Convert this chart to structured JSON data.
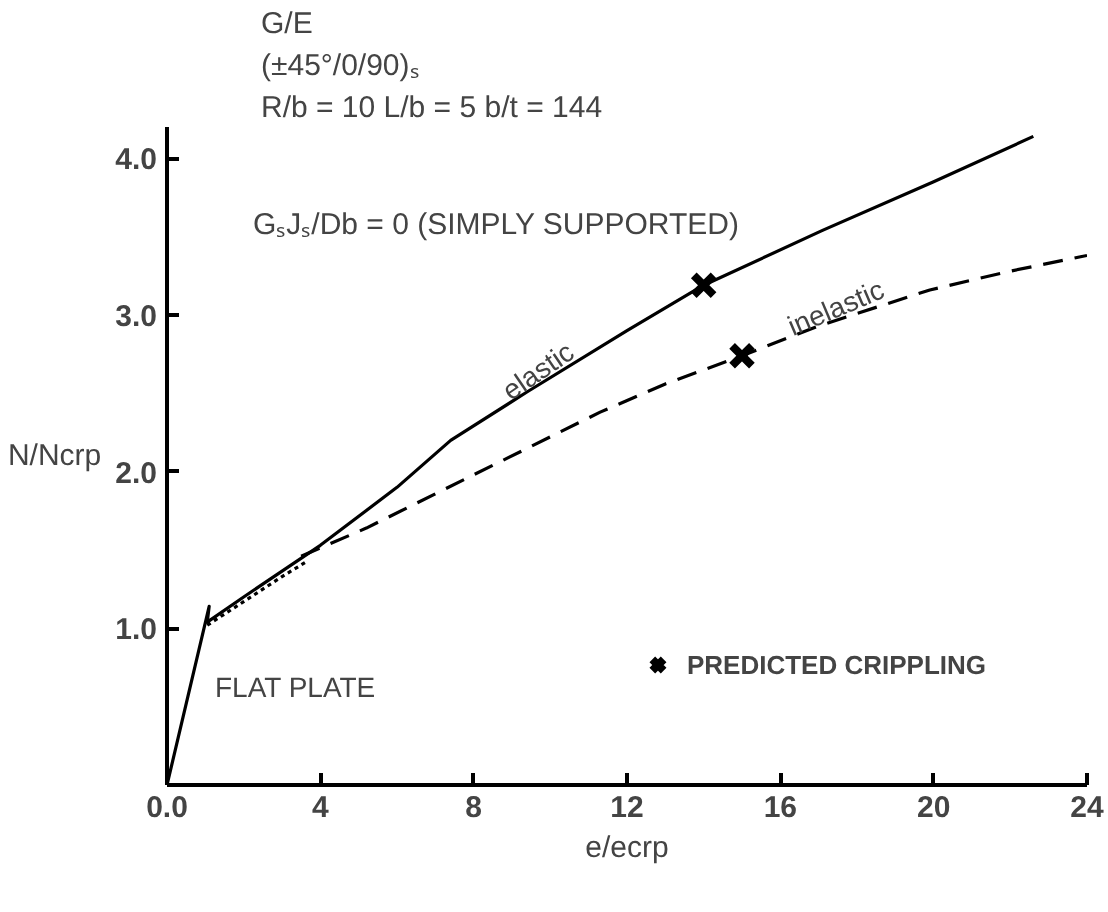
{
  "chart_data": {
    "type": "line",
    "title": "G/E",
    "subtitle": "(±45°/0/90)ₛ",
    "xlabel": "e/ecrp",
    "ylabel": "N/Ncrp",
    "x": [
      0,
      1.1,
      1.05,
      2,
      4,
      6,
      7.4,
      9.4,
      12,
      14,
      17.1,
      20,
      22.6
    ],
    "series": [
      {
        "color": "#000000",
        "line_style": "solid",
        "values": [
          0,
          1.14,
          1.04,
          1.2,
          1.53,
          1.9,
          2.2,
          2.51,
          2.9,
          3.19,
          3.54,
          3.85,
          4.14
        ]
      },
      {
        "color": "#000000",
        "line_style": "dashed",
        "x": [
          3.5,
          5.2,
          8,
          11.3,
          13,
          15,
          17,
          19.9,
          22,
          24
        ],
        "values": [
          1.46,
          1.64,
          1.98,
          2.38,
          2.56,
          2.74,
          2.93,
          3.16,
          3.28,
          3.38
        ]
      },
      {
        "color": "#000000",
        "line_style": "dotted",
        "x": [
          1.05,
          2,
          3,
          3.6
        ],
        "values": [
          1.02,
          1.17,
          1.33,
          1.42
        ]
      },
      {
        "type": "scatter",
        "name": "PREDICTED CRIPPLING",
        "marker": "cross",
        "color": "#000000",
        "x": [
          14,
          15
        ],
        "values": [
          3.19,
          2.74
        ]
      }
    ],
    "xlim": [
      0,
      24
    ],
    "ylim": [
      0,
      4.2
    ],
    "xticks": [
      {
        "value": 0,
        "label": "0.0"
      },
      4,
      8,
      12,
      16,
      20,
      24
    ],
    "yticks": [
      {
        "value": 1,
        "label": "1.0"
      },
      {
        "value": 2,
        "label": "2.0"
      },
      {
        "value": 3,
        "label": "3.0"
      },
      {
        "value": 4,
        "label": "4.0"
      }
    ],
    "grid": false,
    "legend": "bottom right",
    "annotations": [
      "R/b = 10 L/b = 5 b/t = 144",
      "GₛJₛ/Db = 0 (SIMPLY SUPPORTED)",
      "elastic",
      "inelastic",
      "FLAT PLATE"
    ]
  }
}
